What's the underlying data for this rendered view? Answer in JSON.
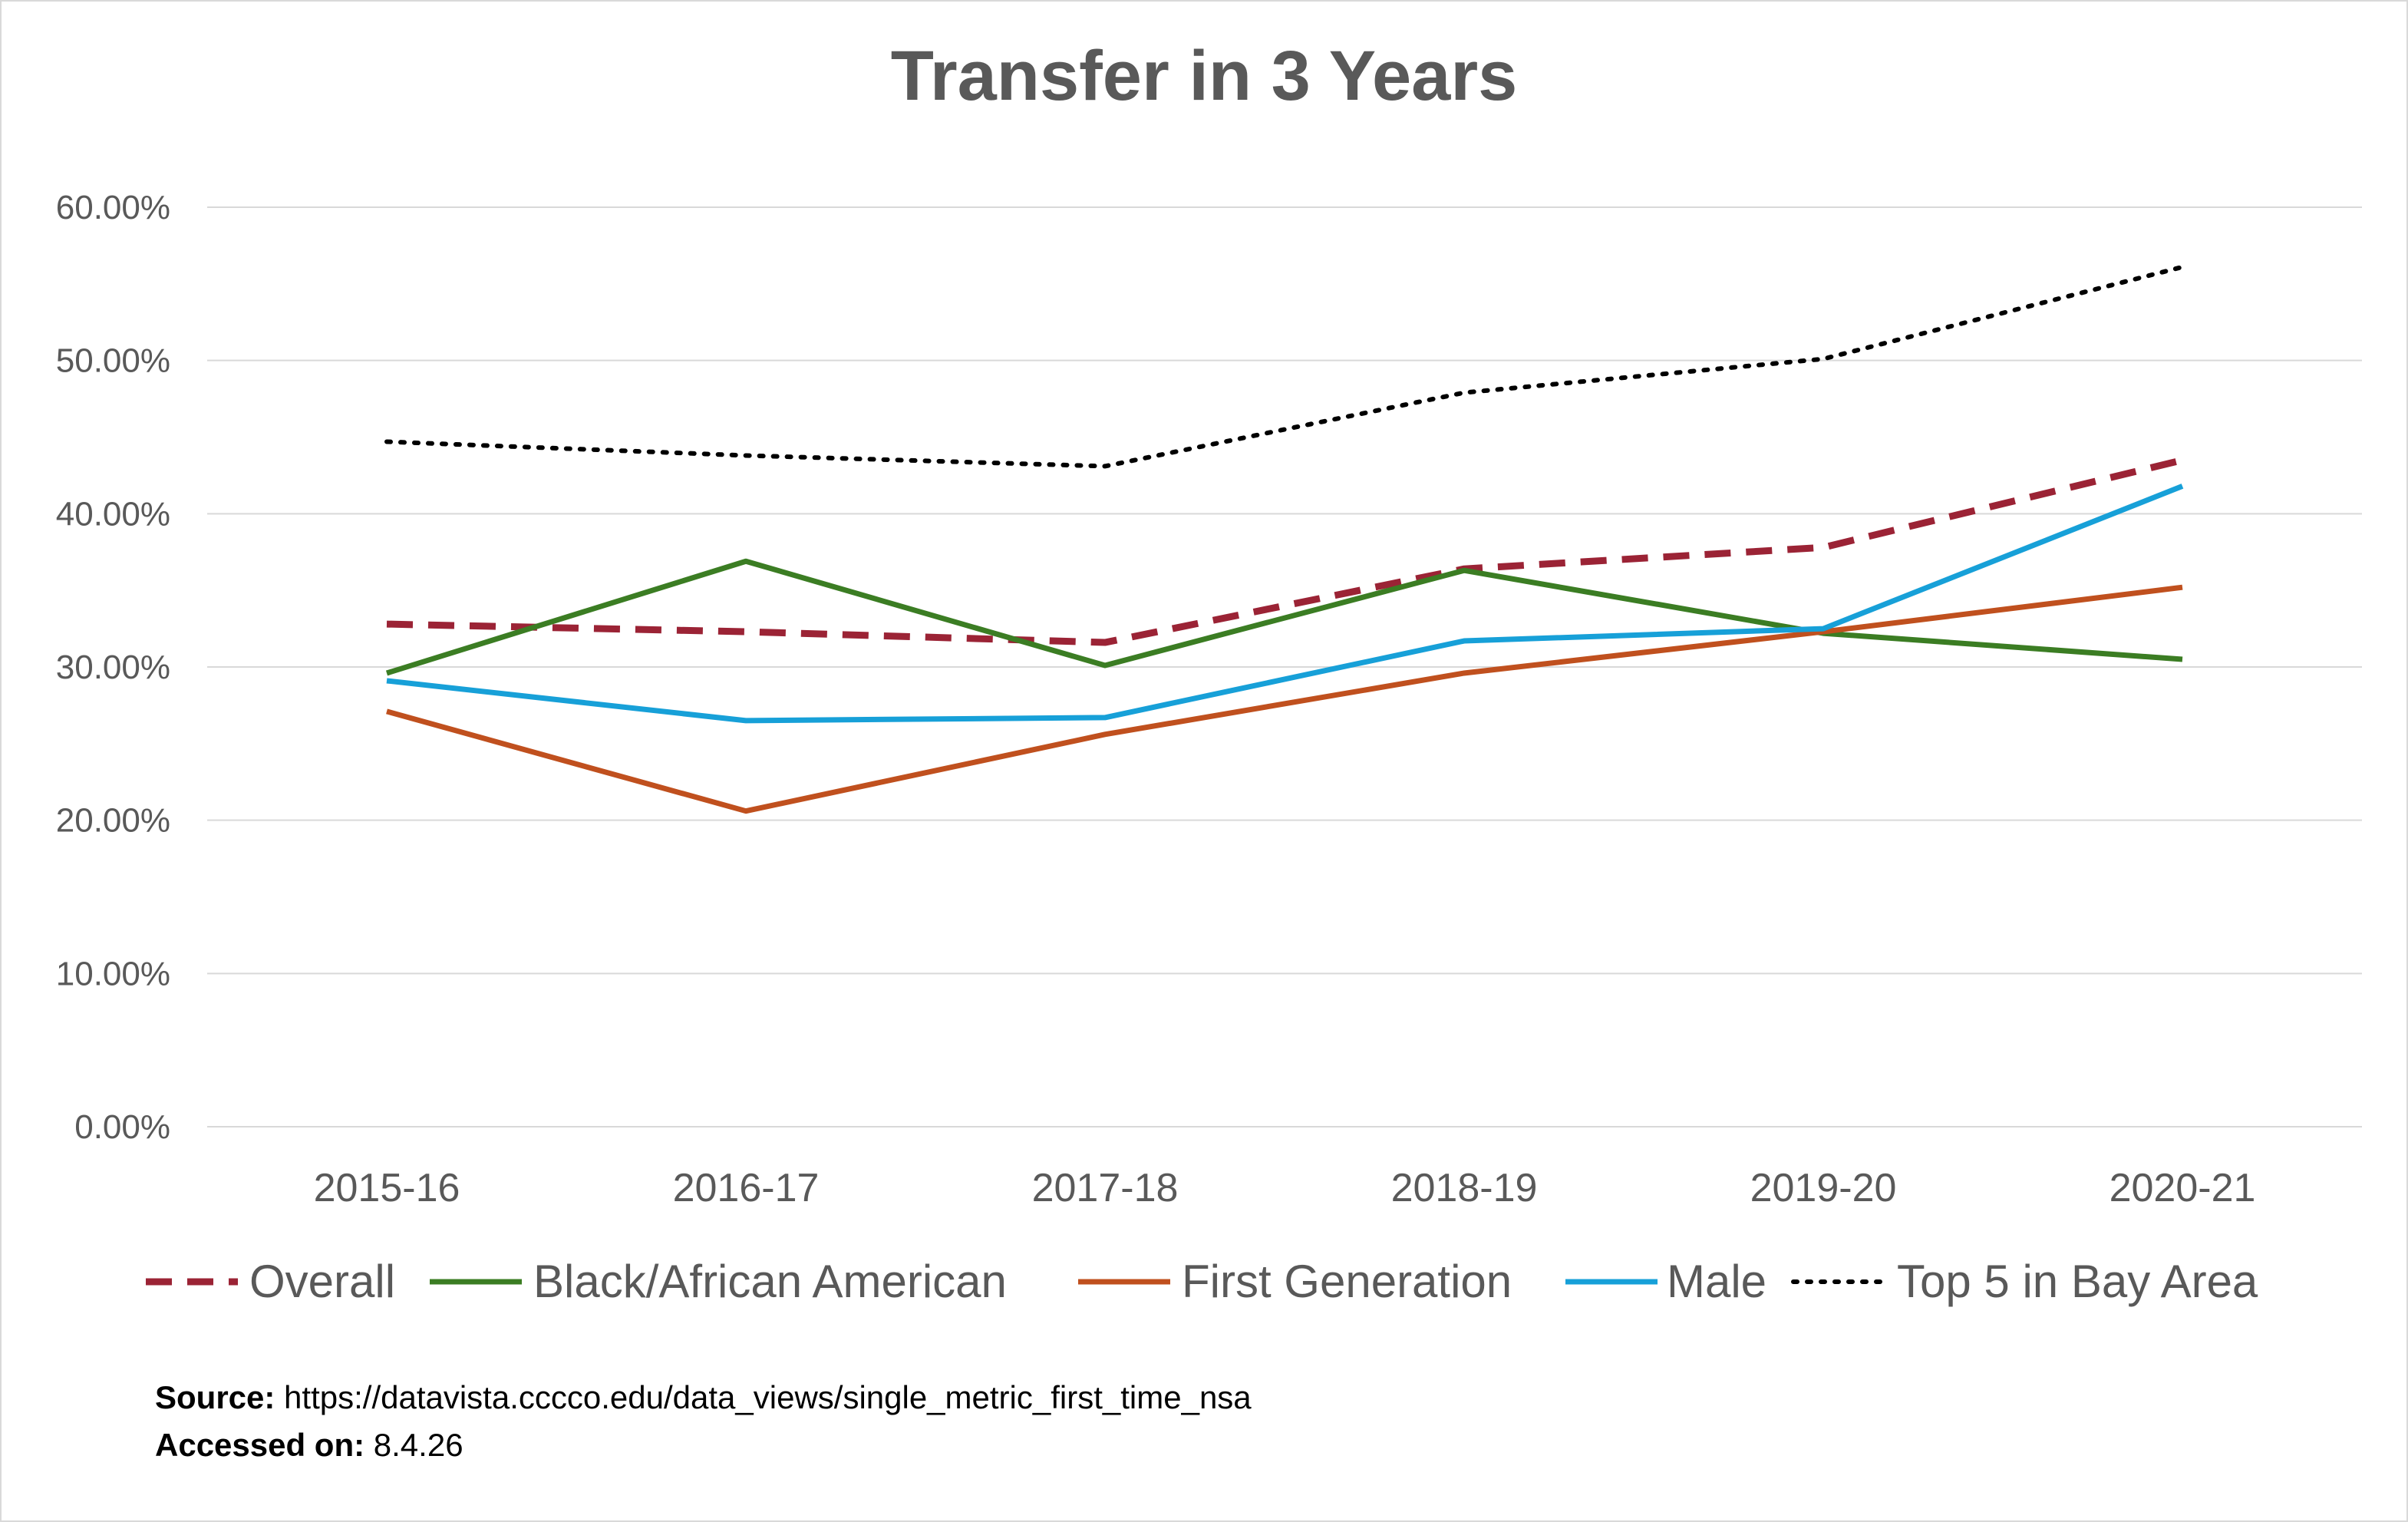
{
  "chart_data": {
    "type": "line",
    "title": "Transfer in 3 Years",
    "xlabel": "",
    "ylabel": "",
    "categories": [
      "2015-16",
      "2016-17",
      "2017-18",
      "2018-19",
      "2019-20",
      "2020-21"
    ],
    "ylim": [
      0,
      60
    ],
    "yticks": [
      "0.00%",
      "10.00%",
      "20.00%",
      "30.00%",
      "40.00%",
      "50.00%",
      "60.00%"
    ],
    "grid": true,
    "legend_position": "bottom",
    "series": [
      {
        "name": "Overall",
        "values": [
          32.8,
          32.3,
          31.6,
          36.4,
          37.8,
          43.5
        ],
        "color": "#9b2335",
        "style": "dashed"
      },
      {
        "name": "Black/African American",
        "values": [
          29.6,
          36.9,
          30.1,
          36.3,
          32.2,
          30.5
        ],
        "color": "#3b7d23",
        "style": "solid"
      },
      {
        "name": "First Generation",
        "values": [
          27.1,
          20.6,
          25.6,
          29.6,
          32.3,
          35.2
        ],
        "color": "#c0501e",
        "style": "solid"
      },
      {
        "name": "Male",
        "values": [
          29.1,
          26.5,
          26.7,
          31.7,
          32.5,
          41.8
        ],
        "color": "#17a0d8",
        "style": "solid"
      },
      {
        "name": "Top 5 in Bay Area",
        "values": [
          44.7,
          43.8,
          43.1,
          47.9,
          50.1,
          56.1
        ],
        "color": "#000000",
        "style": "dotted"
      }
    ]
  },
  "source": {
    "source_label": "Source:",
    "source_url": "https://datavista.cccco.edu/data_views/single_metric_first_time_nsa",
    "accessed_label": "Accessed on:",
    "accessed_value": "8.4.26"
  }
}
